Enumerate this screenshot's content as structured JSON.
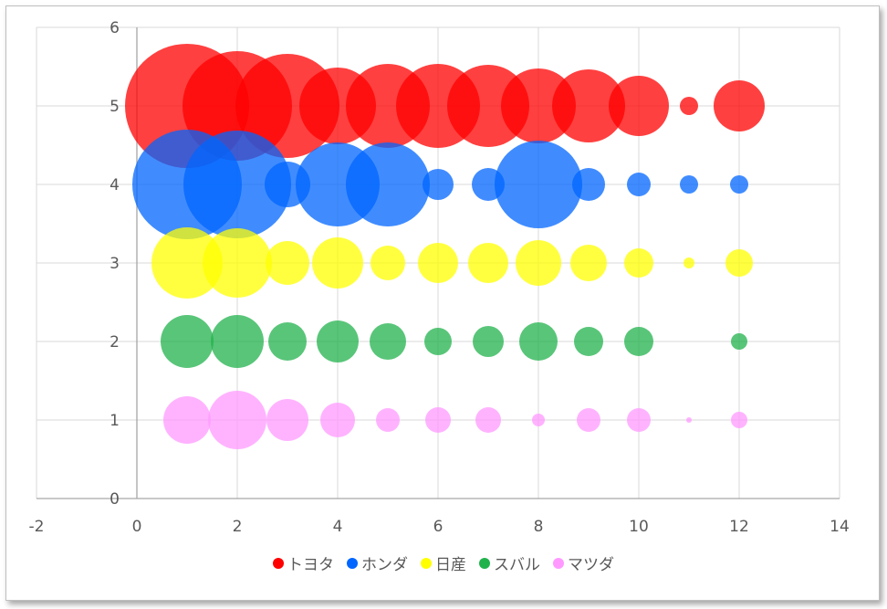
{
  "chart_data": {
    "type": "bubble",
    "title": "",
    "xlabel": "",
    "ylabel": "",
    "xlim": [
      -2,
      14
    ],
    "ylim": [
      0,
      6
    ],
    "x_ticks": [
      "-2",
      "0",
      "2",
      "4",
      "6",
      "8",
      "10",
      "12",
      "14"
    ],
    "y_ticks": [
      "0",
      "1",
      "2",
      "3",
      "4",
      "5",
      "6"
    ],
    "grid": true,
    "legend_position": "bottom",
    "series": [
      {
        "name": "トヨタ",
        "color": "#ff0000",
        "y": 5,
        "points": [
          {
            "x": 1,
            "size": 68
          },
          {
            "x": 2,
            "size": 60
          },
          {
            "x": 3,
            "size": 57
          },
          {
            "x": 4,
            "size": 42
          },
          {
            "x": 5,
            "size": 46
          },
          {
            "x": 6,
            "size": 46
          },
          {
            "x": 7,
            "size": 45
          },
          {
            "x": 8,
            "size": 41
          },
          {
            "x": 9,
            "size": 40
          },
          {
            "x": 10,
            "size": 33
          },
          {
            "x": 11,
            "size": 10
          },
          {
            "x": 12,
            "size": 28
          }
        ]
      },
      {
        "name": "ホンダ",
        "color": "#0066ff",
        "y": 4,
        "points": [
          {
            "x": 1,
            "size": 60
          },
          {
            "x": 2,
            "size": 59
          },
          {
            "x": 3,
            "size": 25
          },
          {
            "x": 4,
            "size": 46
          },
          {
            "x": 5,
            "size": 46
          },
          {
            "x": 6,
            "size": 17
          },
          {
            "x": 7,
            "size": 18
          },
          {
            "x": 8,
            "size": 48
          },
          {
            "x": 9,
            "size": 18
          },
          {
            "x": 10,
            "size": 13
          },
          {
            "x": 11,
            "size": 10
          },
          {
            "x": 12,
            "size": 10
          }
        ]
      },
      {
        "name": "日産",
        "color": "#ffff00",
        "y": 3,
        "points": [
          {
            "x": 1,
            "size": 39
          },
          {
            "x": 2,
            "size": 38
          },
          {
            "x": 3,
            "size": 24
          },
          {
            "x": 4,
            "size": 28
          },
          {
            "x": 5,
            "size": 19
          },
          {
            "x": 6,
            "size": 22
          },
          {
            "x": 7,
            "size": 22
          },
          {
            "x": 8,
            "size": 25
          },
          {
            "x": 9,
            "size": 20
          },
          {
            "x": 10,
            "size": 16
          },
          {
            "x": 11,
            "size": 6
          },
          {
            "x": 12,
            "size": 15
          }
        ]
      },
      {
        "name": "スバル",
        "color": "#22b24c",
        "y": 2,
        "points": [
          {
            "x": 1,
            "size": 29
          },
          {
            "x": 2,
            "size": 29
          },
          {
            "x": 3,
            "size": 21
          },
          {
            "x": 4,
            "size": 23
          },
          {
            "x": 5,
            "size": 20
          },
          {
            "x": 6,
            "size": 15
          },
          {
            "x": 7,
            "size": 17
          },
          {
            "x": 8,
            "size": 21
          },
          {
            "x": 9,
            "size": 16
          },
          {
            "x": 10,
            "size": 16
          },
          {
            "x": 12,
            "size": 9
          }
        ]
      },
      {
        "name": "マツダ",
        "color": "#ff99ff",
        "y": 1,
        "points": [
          {
            "x": 1,
            "size": 26
          },
          {
            "x": 2,
            "size": 32
          },
          {
            "x": 3,
            "size": 23
          },
          {
            "x": 4,
            "size": 19
          },
          {
            "x": 5,
            "size": 13
          },
          {
            "x": 6,
            "size": 14
          },
          {
            "x": 7,
            "size": 14
          },
          {
            "x": 8,
            "size": 7
          },
          {
            "x": 9,
            "size": 13
          },
          {
            "x": 10,
            "size": 13
          },
          {
            "x": 11,
            "size": 3
          },
          {
            "x": 12,
            "size": 9
          }
        ]
      }
    ]
  }
}
